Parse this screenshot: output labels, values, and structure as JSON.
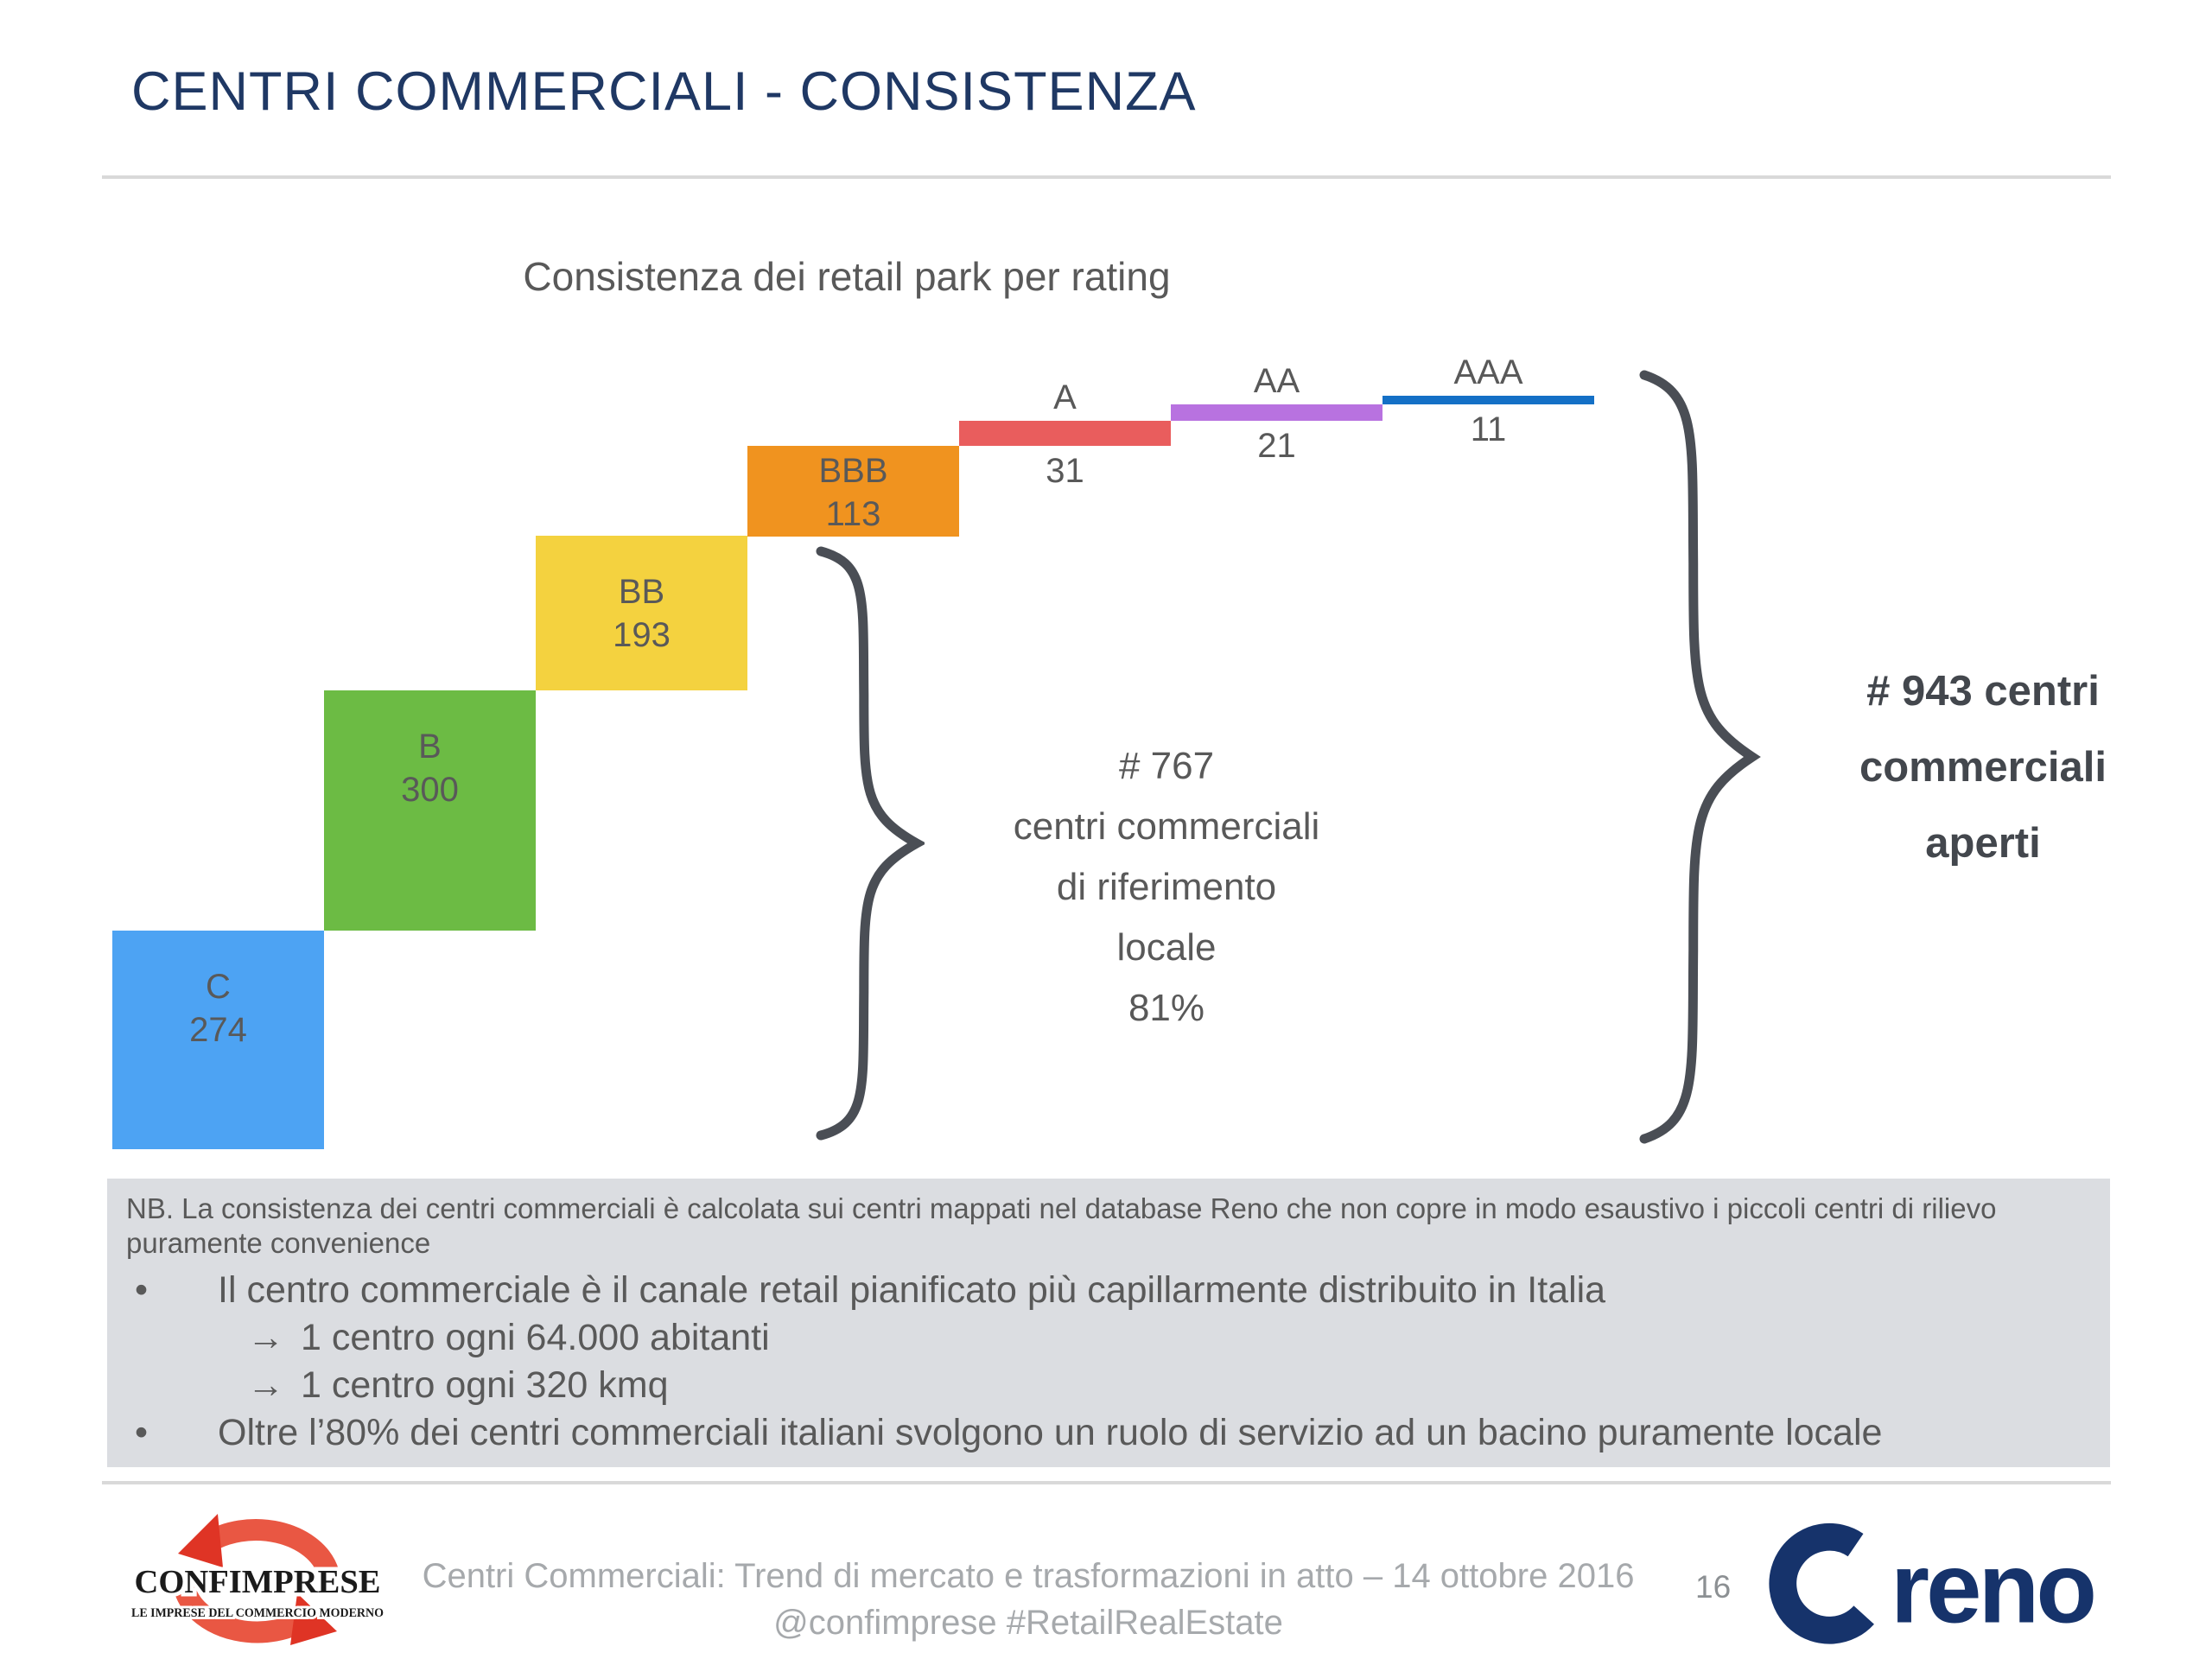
{
  "slide": {
    "title": "CENTRI COMMERCIALI - CONSISTENZA"
  },
  "chart_data": {
    "type": "bar",
    "subtype": "waterfall",
    "title": "Consistenza dei retail park per rating",
    "categories": [
      "C",
      "B",
      "BB",
      "BBB",
      "A",
      "AA",
      "AAA"
    ],
    "values": [
      274,
      300,
      193,
      113,
      31,
      21,
      11
    ],
    "colors": [
      "#4DA3F3",
      "#6CBB44",
      "#F4D23F",
      "#F0931F",
      "#E95D5D",
      "#B872E0",
      "#1470C6"
    ],
    "label_color": "#595959",
    "grid": "off",
    "legend": "none",
    "brace_totals": {
      "local_total": 767,
      "local_share": "81%",
      "open_total": 943
    }
  },
  "annotations": {
    "local_note": {
      "lines": [
        "# 767",
        "centri commerciali",
        "di riferimento",
        "locale",
        "81%"
      ]
    },
    "total_note": {
      "lines": [
        "# 943 centri",
        "commerciali",
        "aperti"
      ]
    }
  },
  "note_box": {
    "nb_text": "NB. La consistenza dei centri commerciali è calcolata sui centri mappati nel database Reno che non copre in modo esaustivo i piccoli centri di rilievo puramente convenience",
    "bullets": [
      {
        "level": 1,
        "marker": "•",
        "text": "Il centro commerciale è il canale retail pianificato più capillarmente distribuito in Italia"
      },
      {
        "level": 2,
        "marker": "→",
        "text": "1 centro ogni 64.000 abitanti"
      },
      {
        "level": 2,
        "marker": "→",
        "text": "1 centro ogni 320 kmq"
      },
      {
        "level": 1,
        "marker": "•",
        "text": "Oltre l’80% dei centri commerciali italiani svolgono un ruolo di servizio ad un bacino puramente locale"
      }
    ]
  },
  "footer": {
    "caption_line1": "Centri Commerciali: Trend di mercato e trasformazioni in atto – 14 ottobre 2016",
    "caption_line2": "@confimprese #RetailRealEstate",
    "page_number": "16",
    "confimprese_logo": {
      "name": "CONFIMPRESE",
      "tagline": "LE IMPRESE DEL COMMERCIO MODERNO"
    },
    "reno_logo_text": "reno"
  },
  "colors": {
    "title_navy": "#1F3864",
    "text_gray": "#595959",
    "brace_gray": "#4A4E55",
    "note_box_bg": "#DBDDE1",
    "divider_gray": "#D9D9D9",
    "footer_gray": "#A6A9AC",
    "confimprese_red": "#E95743",
    "reno_navy": "#16336B"
  }
}
